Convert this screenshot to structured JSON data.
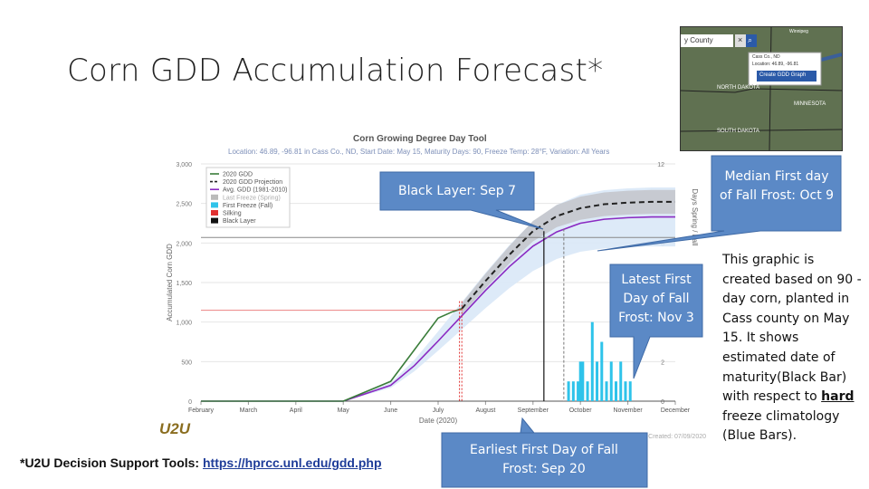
{
  "slide": {
    "title": "Corn GDD Accumulation Forecast*",
    "footer_label": "*U2U Decision Support Tools: ",
    "footer_link": "https://hprcc.unl.edu/gdd.php",
    "side_note_parts": [
      "This graphic is created based on 90 -day corn, planted in Cass county on May 15. It shows estimated date of maturity(Black Bar) with respect to ",
      "hard",
      " freeze climatology (Blue Bars)."
    ],
    "logo_text": "U2U"
  },
  "callouts": {
    "black_layer": "Black Layer: Sep 7",
    "median_first": "Median First day of Fall Frost: Oct 9",
    "latest_first": "Latest First Day of Fall Frost: Nov 3",
    "earliest_first": "Earliest First Day of Fall Frost: Sep 20"
  },
  "colors": {
    "callout_fill": "#5b89c6",
    "callout_border": "#3f6aa6",
    "gdd_2020": "#3a7d3a",
    "projection": "#222222",
    "avg_gdd": "#8a2ac2",
    "last_freeze": "#bbbbbb",
    "first_freeze": "#2ec3ea",
    "silking": "#e03030",
    "black_layer": "#111111",
    "band_grey": "#c4c6cc",
    "band_blue": "#d9e8f7"
  },
  "map_panel": {
    "search_label": "y County",
    "popup_line1": "Cass Co., ND",
    "popup_line2": "Location: 46.89, -96.81",
    "popup_button": "Create GDD Graph",
    "places": [
      "NORTH DAKOTA",
      "MINNESOTA",
      "SOUTH DAKOTA",
      "Winnipeg"
    ]
  },
  "chart_data": {
    "type": "line",
    "title": "Corn Growing Degree Day Tool",
    "subtitle": "Location: 46.89, -96.81 in Cass Co., ND, Start Date: May 15, Maturity Days: 90, Freeze Temp: 28°F, Variation: All Years",
    "xlabel": "Date (2020)",
    "ylabel": "Accumulated Corn GDD",
    "y2label": "Days Spring / Fall",
    "x_ticks": [
      "February",
      "March",
      "April",
      "May",
      "June",
      "July",
      "August",
      "September",
      "October",
      "November",
      "December"
    ],
    "y_ticks": [
      "0",
      "500",
      "1,000",
      "1,500",
      "2,000",
      "2,500",
      "3,000"
    ],
    "y2_ticks": [
      "0",
      "2",
      "4",
      "6",
      "8",
      "10",
      "12"
    ],
    "ylim": [
      0,
      3000
    ],
    "y2lim": [
      0,
      12
    ],
    "legend_position": "top-left",
    "legend": [
      "2020 GDD",
      "2020 GDD Projection",
      "Avg. GDD (1981-2010)",
      "Last Freeze (Spring)",
      "First Freeze (Fall)",
      "Silking",
      "Black Layer"
    ],
    "created_note": "Created: 07/09/2020",
    "series": [
      {
        "name": "2020 GDD",
        "x": [
          0,
          1,
          2,
          3,
          4,
          4.5,
          5,
          5.3,
          5.5
        ],
        "y": [
          0,
          0,
          0,
          0,
          250,
          650,
          1050,
          1130,
          1170
        ]
      },
      {
        "name": "2020 GDD Projection",
        "x": [
          5.5,
          6,
          6.5,
          7,
          7.5,
          8,
          8.5,
          9,
          9.5,
          10
        ],
        "y": [
          1170,
          1520,
          1850,
          2150,
          2340,
          2440,
          2490,
          2510,
          2520,
          2520
        ]
      },
      {
        "name": "Avg. GDD (1981-2010)",
        "x": [
          0,
          3,
          4,
          4.5,
          5,
          5.5,
          6,
          6.5,
          7,
          7.5,
          8,
          8.5,
          9,
          9.5,
          10
        ],
        "y": [
          0,
          0,
          200,
          450,
          760,
          1080,
          1400,
          1700,
          1960,
          2140,
          2250,
          2300,
          2320,
          2330,
          2330
        ]
      },
      {
        "name": "First Freeze (Fall)",
        "x": [
          7.75,
          7.85,
          7.95,
          8.0,
          8.05,
          8.15,
          8.25,
          8.35,
          8.45,
          8.55,
          8.65,
          8.75,
          8.85,
          8.95,
          9.05
        ],
        "y": [
          1,
          1,
          1,
          2,
          2,
          1,
          4,
          2,
          3,
          1,
          2,
          1,
          2,
          1,
          1
        ]
      }
    ],
    "silking_x": [
      5.45,
      5.5
    ],
    "silking_gdd": 1150,
    "black_layer_x": 7.23,
    "fall_frost_marker_x": 7.65
  }
}
